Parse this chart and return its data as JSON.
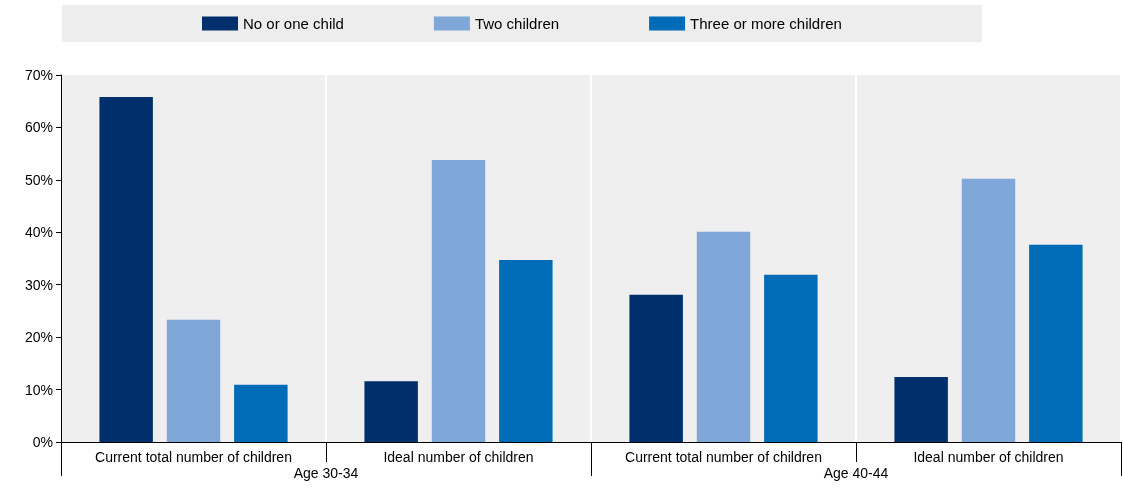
{
  "chart_data": {
    "type": "bar",
    "categories": [
      "Current total number of children",
      "Ideal number of children",
      "Current total number of children",
      "Ideal number of children"
    ],
    "series": [
      {
        "name": "No or one child",
        "color": "#002f6c",
        "values": [
          65.8,
          11.6,
          28.1,
          12.4
        ]
      },
      {
        "name": "Two children",
        "color": "#7fa8d9",
        "values": [
          23.3,
          53.8,
          40.1,
          50.2
        ]
      },
      {
        "name": "Three or more children",
        "color": "#006bb6",
        "values": [
          10.9,
          34.7,
          31.9,
          37.6
        ]
      }
    ],
    "annotations": [
      "Age 30-34",
      "Age 40-44"
    ],
    "ylim": [
      0,
      70
    ],
    "yticks": [
      {
        "value": 0,
        "label": "0%"
      },
      {
        "value": 10,
        "label": "10%"
      },
      {
        "value": 20,
        "label": "20%"
      },
      {
        "value": 30,
        "label": "30%"
      },
      {
        "value": 40,
        "label": "40%"
      },
      {
        "value": 50,
        "label": "50%"
      },
      {
        "value": 60,
        "label": "60%"
      },
      {
        "value": 70,
        "label": "70%"
      }
    ],
    "grid": "x",
    "legend": "top"
  }
}
